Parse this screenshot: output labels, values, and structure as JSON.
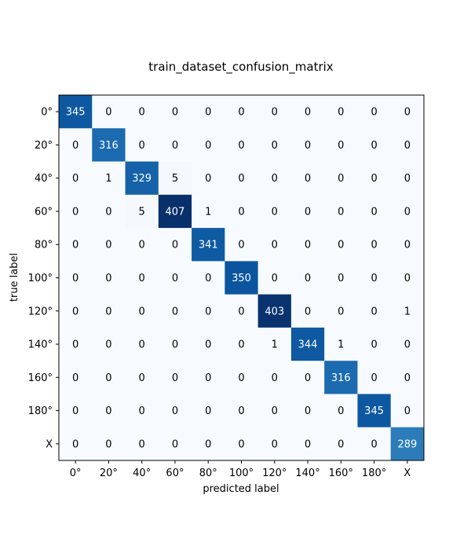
{
  "chart_data": {
    "type": "heatmap",
    "title": "train_dataset_confusion_matrix",
    "xlabel": "predicted label",
    "ylabel": "true label",
    "x_categories": [
      "0°",
      "20°",
      "40°",
      "60°",
      "80°",
      "100°",
      "120°",
      "140°",
      "160°",
      "180°",
      "X"
    ],
    "y_categories": [
      "0°",
      "20°",
      "40°",
      "60°",
      "80°",
      "100°",
      "120°",
      "140°",
      "160°",
      "180°",
      "X"
    ],
    "values": [
      [
        345,
        0,
        0,
        0,
        0,
        0,
        0,
        0,
        0,
        0,
        0
      ],
      [
        0,
        316,
        0,
        0,
        0,
        0,
        0,
        0,
        0,
        0,
        0
      ],
      [
        0,
        1,
        329,
        5,
        0,
        0,
        0,
        0,
        0,
        0,
        0
      ],
      [
        0,
        0,
        5,
        407,
        1,
        0,
        0,
        0,
        0,
        0,
        0
      ],
      [
        0,
        0,
        0,
        0,
        341,
        0,
        0,
        0,
        0,
        0,
        0
      ],
      [
        0,
        0,
        0,
        0,
        0,
        350,
        0,
        0,
        0,
        0,
        0
      ],
      [
        0,
        0,
        0,
        0,
        0,
        0,
        403,
        0,
        0,
        0,
        1
      ],
      [
        0,
        0,
        0,
        0,
        0,
        0,
        1,
        344,
        1,
        0,
        0
      ],
      [
        0,
        0,
        0,
        0,
        0,
        0,
        0,
        0,
        316,
        0,
        0
      ],
      [
        0,
        0,
        0,
        0,
        0,
        0,
        0,
        0,
        0,
        345,
        0
      ],
      [
        0,
        0,
        0,
        0,
        0,
        0,
        0,
        0,
        0,
        0,
        289
      ]
    ],
    "colormap": "Blues",
    "colormap_stops": [
      "#f7fbff",
      "#deebf7",
      "#c6dbef",
      "#9ecae1",
      "#6baed6",
      "#4292c6",
      "#2171b5",
      "#08519c",
      "#08306b"
    ],
    "grid": false
  }
}
